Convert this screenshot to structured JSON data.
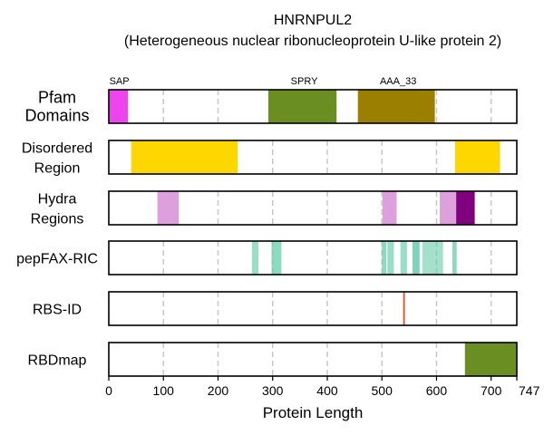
{
  "chart_data": {
    "type": "bar",
    "title": "HNRNPUL2",
    "subtitle": "(Heterogeneous nuclear ribonucleoprotein U-like protein 2)",
    "xlabel": "Protein Length",
    "xlim": [
      0,
      747
    ],
    "xticks": [
      0,
      100,
      200,
      300,
      400,
      500,
      600,
      700,
      747
    ],
    "grid": true,
    "tracks": [
      {
        "name": "Pfam Domains",
        "label_lines": [
          "Pfam",
          "Domains"
        ],
        "segments": [
          {
            "start": 1,
            "end": 35,
            "color": "#ee44ee",
            "label": "SAP"
          },
          {
            "start": 292,
            "end": 417,
            "color": "#6b8e23",
            "label": "SPRY"
          },
          {
            "start": 456,
            "end": 597,
            "color": "#9b8000",
            "label": "AAA_33"
          }
        ]
      },
      {
        "name": "Disordered Region",
        "label_lines": [
          "Disordered",
          "Region"
        ],
        "segments": [
          {
            "start": 41,
            "end": 236,
            "color": "#ffd700"
          },
          {
            "start": 634,
            "end": 716,
            "color": "#ffd700"
          }
        ]
      },
      {
        "name": "Hydra Regions",
        "label_lines": [
          "Hydra",
          "Regions"
        ],
        "segments": [
          {
            "start": 89,
            "end": 128,
            "color": "#dda0dd"
          },
          {
            "start": 501,
            "end": 527,
            "color": "#dda0dd"
          },
          {
            "start": 606,
            "end": 636,
            "color": "#dda0dd"
          },
          {
            "start": 636,
            "end": 670,
            "color": "#800080"
          }
        ]
      },
      {
        "name": "pepFAX-RIC",
        "label_lines": [
          "pepFAX-RIC"
        ],
        "segments": [
          {
            "start": 262,
            "end": 274,
            "color": "#66cdaa",
            "opacity": 0.65
          },
          {
            "start": 298,
            "end": 316,
            "color": "#66cdaa",
            "opacity": 0.75
          },
          {
            "start": 500,
            "end": 508,
            "color": "#66cdaa",
            "opacity": 0.75
          },
          {
            "start": 510,
            "end": 522,
            "color": "#66cdaa",
            "opacity": 0.65
          },
          {
            "start": 534,
            "end": 546,
            "color": "#66cdaa",
            "opacity": 0.65
          },
          {
            "start": 556,
            "end": 569,
            "color": "#66cdaa",
            "opacity": 0.85
          },
          {
            "start": 574,
            "end": 612,
            "color": "#66cdaa",
            "opacity": 0.6
          },
          {
            "start": 629,
            "end": 637,
            "color": "#66cdaa",
            "opacity": 0.75
          }
        ]
      },
      {
        "name": "RBS-ID",
        "label_lines": [
          "RBS-ID"
        ],
        "segments": [
          {
            "start": 539,
            "end": 542,
            "color": "#e2501f"
          }
        ]
      },
      {
        "name": "RBDmap",
        "label_lines": [
          "RBDmap"
        ],
        "segments": [
          {
            "start": 652,
            "end": 747,
            "color": "#6b8e23"
          }
        ]
      }
    ]
  }
}
